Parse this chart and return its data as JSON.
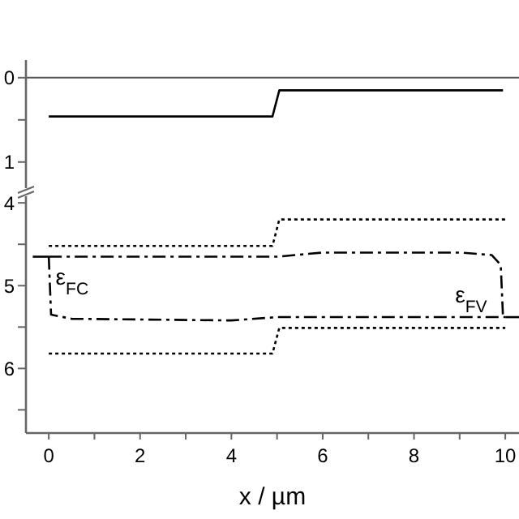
{
  "chart_data": [
    {
      "type": "line",
      "xlim": [
        -0.5,
        10.3
      ],
      "ylim": [
        1.31,
        -0.21
      ],
      "yticks": [
        0,
        {
          "value": 0.5,
          "label": null
        },
        1
      ],
      "tick_labels": "y",
      "ref_lines": [
        {
          "axis": "y",
          "value": 0,
          "color": "#555555",
          "line_style": "solid"
        }
      ],
      "series": [
        {
          "color": "#000000",
          "line_style": "solid",
          "x": [
            0,
            4.9,
            5.05,
            9.95
          ],
          "values": [
            0.46,
            0.46,
            0.15,
            0.15
          ]
        }
      ]
    },
    {
      "type": "line",
      "xlim": [
        -0.5,
        10.3
      ],
      "ylim": [
        6.78,
        3.92
      ],
      "xticks": [
        0,
        {
          "value": 1,
          "label": null
        },
        2,
        {
          "value": 3,
          "label": null
        },
        4,
        {
          "value": 5,
          "label": null
        },
        6,
        {
          "value": 7,
          "label": null
        },
        8,
        {
          "value": 9,
          "label": null
        },
        10
      ],
      "yticks": [
        4,
        {
          "value": 4.5,
          "label": null
        },
        5,
        {
          "value": 5.5,
          "label": null
        },
        6,
        {
          "value": 6.5,
          "label": null
        }
      ],
      "xlabel": "x / µm",
      "annotations": [
        {
          "text": "ε$_{FC}$",
          "x": 0.15,
          "y": 4.65
        },
        {
          "text": "ε$_{FV}$",
          "x": 8.9,
          "y": 5.38
        }
      ],
      "series": [
        {
          "color": "#000000",
          "line_style": "dotted",
          "x": [
            0,
            4.9,
            5.05,
            10
          ],
          "values": [
            4.52,
            4.52,
            4.2,
            4.2
          ]
        },
        {
          "color": "#000000",
          "line_style": "dotted",
          "x": [
            0,
            4.9,
            5.05,
            10
          ],
          "values": [
            5.82,
            5.82,
            5.51,
            5.51
          ]
        },
        {
          "color": "#000000",
          "line_style": "dashed",
          "x": [
            0,
            5,
            6,
            9,
            9.7,
            9.9,
            9.95
          ],
          "values": [
            4.65,
            4.65,
            4.6,
            4.6,
            4.63,
            4.75,
            5.38
          ]
        },
        {
          "color": "#000000",
          "line_style": "dashed",
          "x": [
            0,
            0.05,
            0.5,
            4,
            5,
            10
          ],
          "values": [
            4.65,
            5.35,
            5.4,
            5.42,
            5.38,
            5.38
          ]
        },
        {
          "color": "#000000",
          "line_style": "solid",
          "x": [
            -0.35,
            0
          ],
          "values": [
            4.65,
            4.65
          ]
        },
        {
          "color": "#000000",
          "line_style": "solid",
          "x": [
            10,
            10.3
          ],
          "values": [
            5.38,
            5.38
          ]
        }
      ]
    }
  ]
}
